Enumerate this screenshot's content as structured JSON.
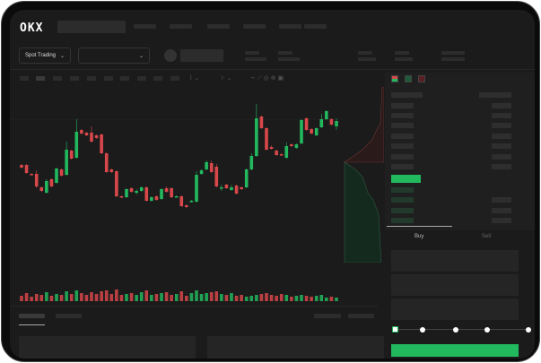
{
  "header": {
    "logo": "OKX"
  },
  "toolbar": {
    "market_type": "Spot Trading",
    "pair_selector": ""
  },
  "order_panel": {
    "tabs": [
      "Buy",
      "Sell"
    ],
    "active_tab": "Buy",
    "leverage_steps": 5,
    "selected_step": 0
  },
  "colors": {
    "up": "#22b85e",
    "down": "#d8474a",
    "background": "#1b1b1b",
    "placeholder": "#2c2c2c"
  },
  "icons": [
    "orderbook-both-icon",
    "orderbook-bids-icon",
    "orderbook-asks-icon",
    "chevron-down-icon",
    "indicator-icon",
    "draw-icon"
  ],
  "chart_data": {
    "type": "candlestick",
    "ohlc": [
      [
        68,
        68,
        66,
        65
      ],
      [
        68,
        68,
        59,
        59
      ],
      [
        58,
        58,
        57,
        57
      ],
      [
        58,
        61,
        43,
        44
      ],
      [
        43,
        43,
        39,
        39
      ],
      [
        37,
        51,
        37,
        50
      ],
      [
        52,
        52,
        44,
        44
      ],
      [
        48,
        64,
        48,
        64
      ],
      [
        63,
        63,
        56,
        56
      ],
      [
        57,
        93,
        57,
        85
      ],
      [
        84,
        84,
        75,
        75
      ],
      [
        76,
        118,
        76,
        105
      ],
      [
        107,
        107,
        103,
        103
      ],
      [
        104,
        104,
        101,
        101
      ],
      [
        104,
        110,
        94,
        94
      ],
      [
        101,
        101,
        98,
        98
      ],
      [
        102,
        102,
        81,
        81
      ],
      [
        81,
        81,
        60,
        60
      ],
      [
        63,
        63,
        60,
        60
      ],
      [
        61,
        61,
        33,
        33
      ],
      [
        33,
        33,
        32,
        32
      ],
      [
        32,
        41,
        32,
        41
      ],
      [
        42,
        42,
        38,
        38
      ],
      [
        37,
        40,
        36,
        39
      ],
      [
        39,
        43,
        39,
        43
      ],
      [
        43,
        43,
        28,
        28
      ],
      [
        28,
        32,
        28,
        32
      ],
      [
        33,
        33,
        29,
        29
      ],
      [
        30,
        41,
        30,
        41
      ],
      [
        42,
        43,
        38,
        38
      ],
      [
        42,
        42,
        32,
        32
      ],
      [
        33,
        33,
        33,
        33
      ],
      [
        33,
        33,
        22,
        22
      ],
      [
        23,
        23,
        21,
        21
      ],
      [
        27,
        28,
        27,
        28
      ],
      [
        27,
        60,
        27,
        57
      ],
      [
        58,
        62,
        58,
        62
      ],
      [
        63,
        72,
        63,
        71
      ],
      [
        70,
        72,
        60,
        60
      ],
      [
        66,
        68,
        44,
        44
      ],
      [
        42,
        45,
        40,
        43
      ],
      [
        46,
        46,
        42,
        42
      ],
      [
        40,
        45,
        40,
        43
      ],
      [
        45,
        45,
        36,
        36
      ],
      [
        43,
        43,
        41,
        41
      ],
      [
        43,
        63,
        43,
        63
      ],
      [
        63,
        80,
        63,
        78
      ],
      [
        78,
        135,
        78,
        120
      ],
      [
        122,
        122,
        109,
        109
      ],
      [
        109,
        109,
        85,
        85
      ],
      [
        88,
        89,
        86,
        86
      ],
      [
        84,
        84,
        79,
        79
      ],
      [
        80,
        80,
        79,
        79
      ],
      [
        76,
        92,
        76,
        89
      ],
      [
        91,
        91,
        89,
        89
      ],
      [
        87,
        91,
        87,
        91
      ],
      [
        92,
        118,
        92,
        118
      ],
      [
        120,
        120,
        107,
        107
      ],
      [
        108,
        108,
        103,
        103
      ],
      [
        101,
        109,
        101,
        109
      ],
      [
        110,
        124,
        110,
        119
      ],
      [
        119,
        128,
        119,
        128
      ],
      [
        119,
        119,
        113,
        113
      ],
      [
        111,
        119,
        108,
        117
      ]
    ],
    "volume": [
      6,
      9,
      5,
      8,
      7,
      10,
      6,
      8,
      7,
      11,
      8,
      12,
      9,
      7,
      10,
      8,
      11,
      12,
      8,
      13,
      7,
      8,
      9,
      7,
      10,
      12,
      7,
      8,
      9,
      10,
      7,
      8,
      11,
      6,
      9,
      12,
      8,
      9,
      10,
      11,
      8,
      7,
      9,
      6,
      7,
      5,
      6,
      7,
      8,
      9,
      7,
      6,
      8,
      7,
      5,
      6,
      7,
      6,
      5,
      6,
      7,
      4,
      5,
      4
    ],
    "depth": {
      "asks": [
        [
          0,
          0
        ],
        [
          0.1,
          0.12
        ],
        [
          0.2,
          0.28
        ],
        [
          0.35,
          0.45
        ],
        [
          0.55,
          0.6
        ],
        [
          0.8,
          0.74
        ],
        [
          1.0,
          0.82
        ]
      ],
      "bids": [
        [
          0,
          0
        ],
        [
          0.2,
          0.15
        ],
        [
          0.4,
          0.35
        ],
        [
          0.6,
          0.5
        ],
        [
          0.8,
          0.68
        ],
        [
          1.0,
          1.0
        ]
      ]
    }
  }
}
